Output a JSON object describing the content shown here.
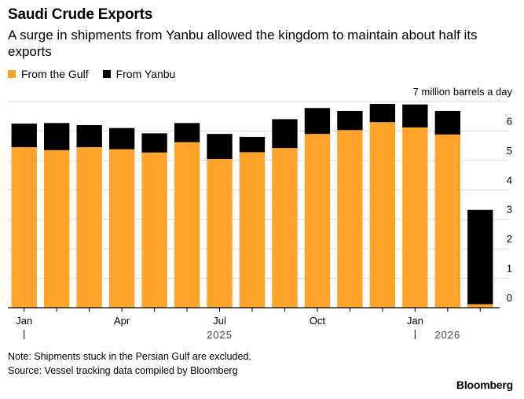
{
  "header": {
    "title": "Saudi Crude Exports",
    "subtitle": "A surge in shipments from Yanbu allowed the kingdom to maintain about half its exports"
  },
  "footer": {
    "note": "Note: Shipments stuck in the Persian Gulf are excluded.",
    "source": "Source: Vessel tracking data compiled by Bloomberg",
    "brand": "Bloomberg"
  },
  "chart_data": {
    "type": "bar",
    "stacked": true,
    "x": [
      "2025-01",
      "2025-02",
      "2025-03",
      "2025-04",
      "2025-05",
      "2025-06",
      "2025-07",
      "2025-08",
      "2025-09",
      "2025-10",
      "2025-11",
      "2025-12",
      "2026-01",
      "2026-02",
      "2026-03"
    ],
    "x_tick_labels": [
      {
        "index": 0,
        "label": "Jan"
      },
      {
        "index": 3,
        "label": "Apr"
      },
      {
        "index": 6,
        "label": "Jul"
      },
      {
        "index": 9,
        "label": "Oct"
      },
      {
        "index": 12,
        "label": "Jan"
      }
    ],
    "year_labels": [
      {
        "label": "2025",
        "index": 6
      },
      {
        "label": "2026",
        "index": 13
      }
    ],
    "series": [
      {
        "name": "From the Gulf",
        "color": "#ffa32a",
        "values": [
          5.45,
          5.35,
          5.45,
          5.38,
          5.27,
          5.62,
          5.05,
          5.28,
          5.42,
          5.9,
          6.03,
          6.3,
          6.12,
          5.88,
          0.12
        ]
      },
      {
        "name": "From Yanbu",
        "color": "#000000",
        "values": [
          0.8,
          0.92,
          0.75,
          0.72,
          0.65,
          0.65,
          0.85,
          0.52,
          0.98,
          0.88,
          0.65,
          0.62,
          0.78,
          0.8,
          3.2
        ]
      }
    ],
    "y_ticks": [
      0,
      1,
      2,
      3,
      4,
      5,
      6,
      7
    ],
    "ylim": [
      0,
      7
    ],
    "y_unit_label": "7 million barrels a day",
    "ylabel": "",
    "xlabel": "",
    "grid": true,
    "legend_position": "top-left",
    "y_axis_side": "right"
  }
}
